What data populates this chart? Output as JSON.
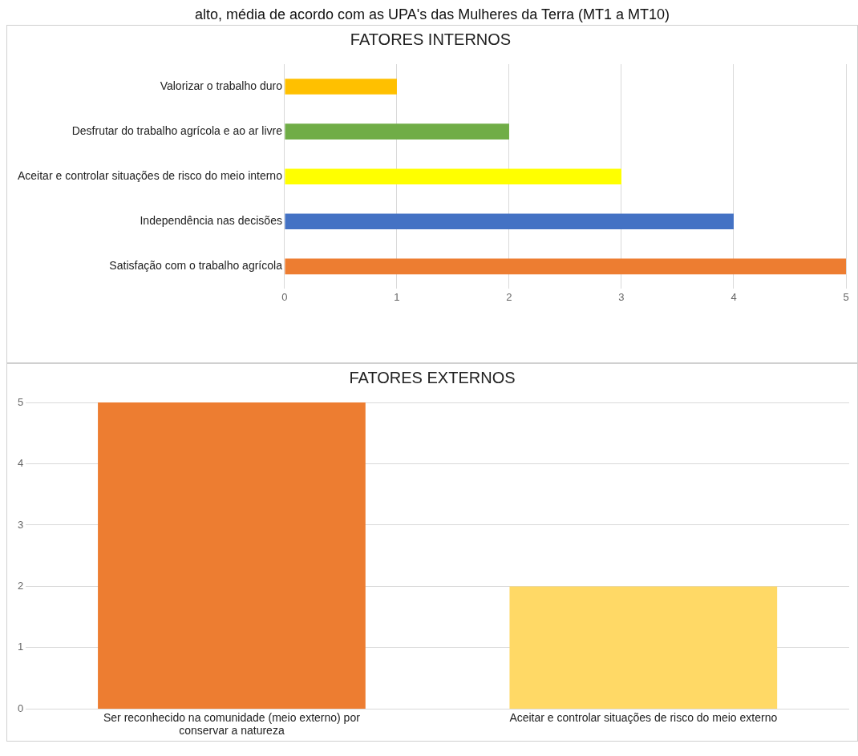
{
  "chart_data": [
    {
      "type": "bar",
      "orientation": "horizontal",
      "title": "FATORES INTERNOS",
      "annotations": [
        "alto, média de acordo com as UPA's das Mulheres da Terra (MT1 a MT10)"
      ],
      "categories": [
        "Valorizar o trabalho duro",
        "Desfrutar do trabalho agrícola e ao ar livre",
        "Aceitar e controlar situações de risco do meio interno",
        "Independência nas decisões",
        "Satisfação com o trabalho agrícola"
      ],
      "values": [
        1,
        2,
        3,
        4,
        5
      ],
      "colors": [
        "#ffc000",
        "#70ad47",
        "#ffff00",
        "#4472c4",
        "#ed7d31"
      ],
      "xlim": [
        0,
        5
      ],
      "xticks": [
        0,
        1,
        2,
        3,
        4,
        5
      ],
      "grid": "x",
      "legend": false
    },
    {
      "type": "bar",
      "title": "FATORES EXTERNOS",
      "categories": [
        "Ser reconhecido na comunidade (meio externo) por conservar a natureza",
        "Aceitar e controlar situações de risco do meio externo"
      ],
      "values": [
        5,
        2
      ],
      "colors": [
        "#ed7d31",
        "#ffd966"
      ],
      "ylim": [
        0,
        5
      ],
      "yticks": [
        0,
        1,
        2,
        3,
        4,
        5
      ],
      "grid": "y",
      "legend": false
    }
  ]
}
